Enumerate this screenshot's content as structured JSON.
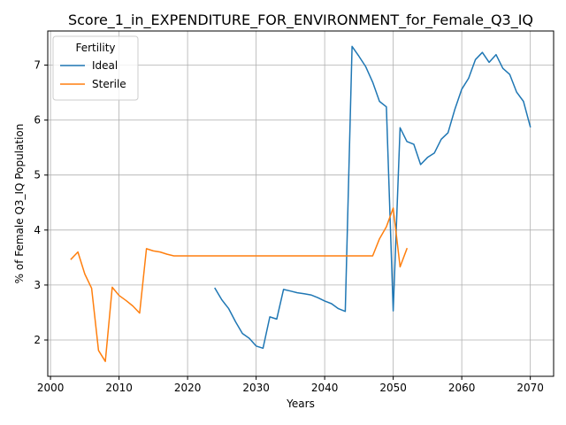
{
  "chart_data": {
    "type": "line",
    "title": "Score_1_in_EXPENDITURE_FOR_ENVIRONMENT_for_Female_Q3_IQ",
    "xlabel": "Years",
    "ylabel": "% of Female Q3_IQ Population",
    "xlim": [
      1999.6,
      2073.4
    ],
    "ylim": [
      1.34,
      7.62
    ],
    "xticks": [
      2000,
      2010,
      2020,
      2030,
      2040,
      2050,
      2060,
      2070
    ],
    "yticks": [
      2,
      3,
      4,
      5,
      6,
      7
    ],
    "grid": true,
    "legend": {
      "title": "Fertility",
      "placement": "top-left"
    },
    "series": [
      {
        "name": "Ideal",
        "color": "#1f77b4",
        "x": [
          2024,
          2025,
          2026,
          2027,
          2028,
          2029,
          2030,
          2031,
          2032,
          2033,
          2034,
          2035,
          2036,
          2037,
          2038,
          2039,
          2040,
          2041,
          2042,
          2043,
          2044,
          2045,
          2046,
          2047,
          2048,
          2049,
          2050,
          2051,
          2052,
          2053,
          2054,
          2055,
          2056,
          2057,
          2058,
          2059,
          2060,
          2061,
          2062,
          2063,
          2064,
          2065,
          2066,
          2067,
          2068,
          2069,
          2070
        ],
        "y": [
          2.94,
          2.73,
          2.57,
          2.33,
          2.12,
          2.03,
          1.89,
          1.85,
          2.42,
          2.38,
          2.92,
          2.89,
          2.86,
          2.84,
          2.82,
          2.77,
          2.71,
          2.66,
          2.57,
          2.52,
          7.34,
          7.16,
          6.97,
          6.69,
          6.34,
          6.24,
          2.53,
          5.86,
          5.61,
          5.56,
          5.19,
          5.32,
          5.4,
          5.65,
          5.77,
          6.2,
          6.56,
          6.76,
          7.1,
          7.23,
          7.05,
          7.19,
          6.94,
          6.83,
          6.51,
          6.34,
          5.88
        ]
      },
      {
        "name": "Sterile",
        "color": "#ff7f0e",
        "x": [
          2003,
          2004,
          2005,
          2006,
          2007,
          2008,
          2009,
          2010,
          2011,
          2012,
          2013,
          2014,
          2015,
          2016,
          2017,
          2018,
          2019,
          2020,
          2021,
          2022,
          2023,
          2024,
          2025,
          2026,
          2027,
          2028,
          2029,
          2030,
          2031,
          2032,
          2033,
          2034,
          2035,
          2036,
          2037,
          2038,
          2039,
          2040,
          2041,
          2042,
          2043,
          2044,
          2045,
          2046,
          2047,
          2048,
          2049,
          2050,
          2051,
          2052
        ],
        "y": [
          3.47,
          3.6,
          3.2,
          2.94,
          1.81,
          1.61,
          2.96,
          2.81,
          2.72,
          2.62,
          2.49,
          3.66,
          3.62,
          3.6,
          3.56,
          3.53,
          3.53,
          3.53,
          3.53,
          3.53,
          3.53,
          3.53,
          3.53,
          3.53,
          3.53,
          3.53,
          3.53,
          3.53,
          3.53,
          3.53,
          3.53,
          3.53,
          3.53,
          3.53,
          3.53,
          3.53,
          3.53,
          3.53,
          3.53,
          3.53,
          3.53,
          3.53,
          3.53,
          3.53,
          3.53,
          3.84,
          4.06,
          4.4,
          3.33,
          3.66
        ]
      }
    ]
  }
}
